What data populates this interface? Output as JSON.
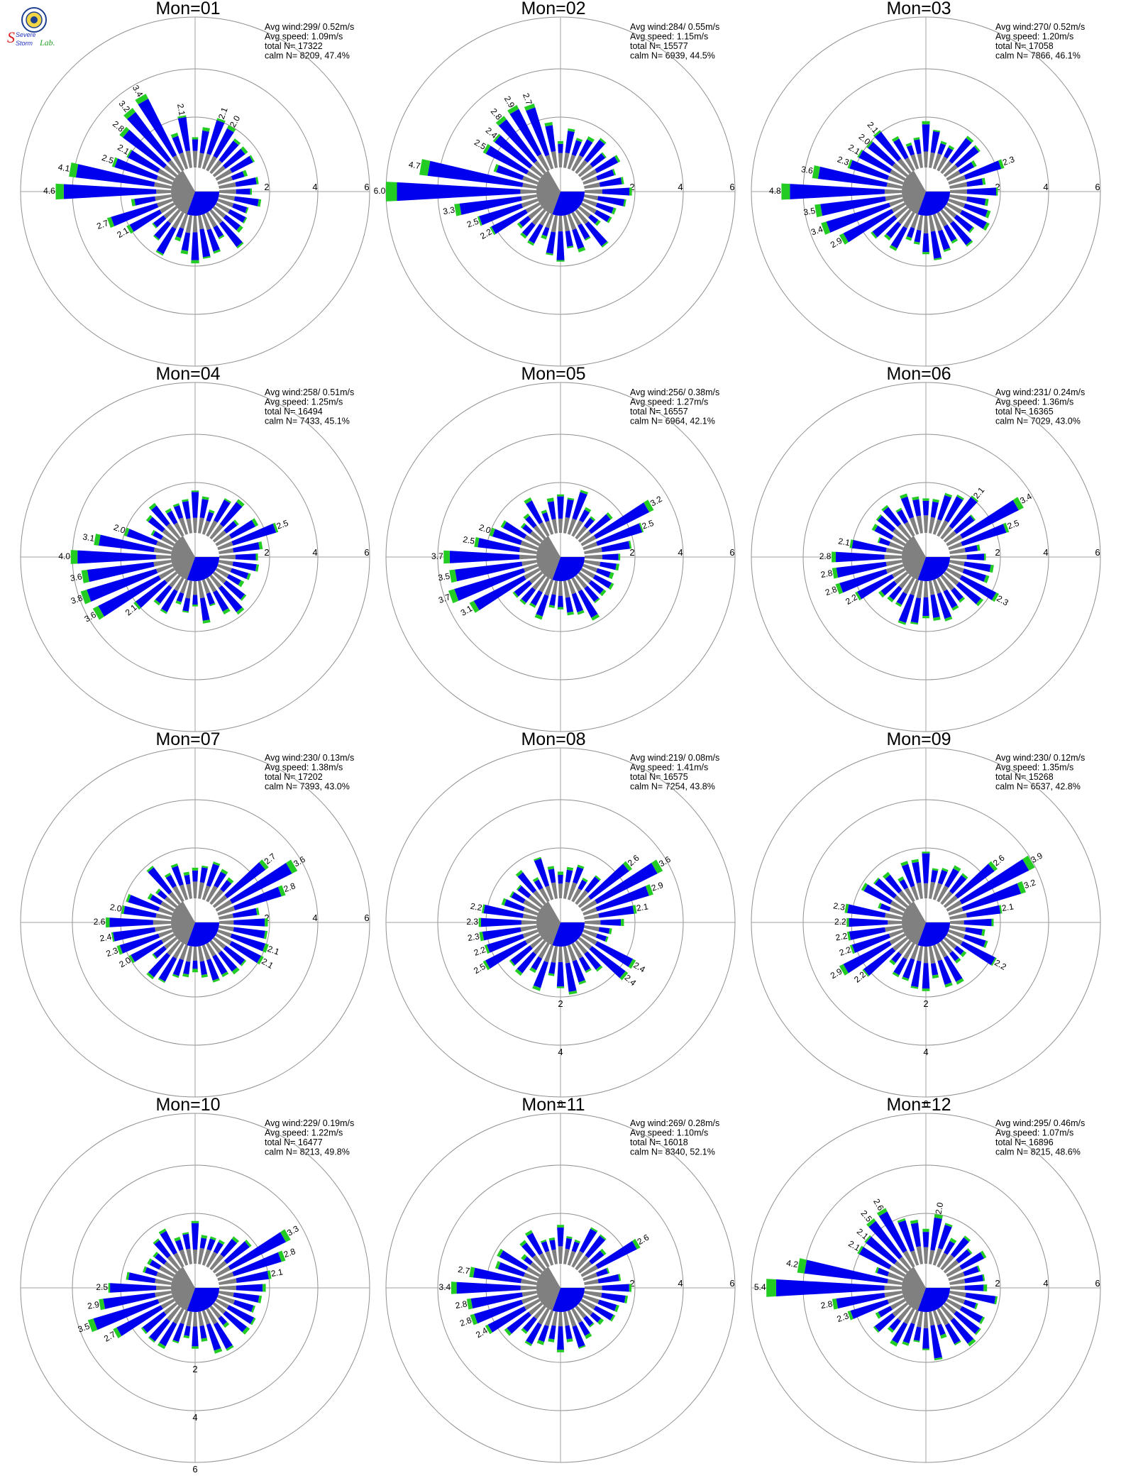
{
  "logo": {
    "line1": "Severe",
    "line2": "Storm",
    "line3": "Lab.",
    "colors": {
      "seal": "#1d3f8f",
      "s_red": "#d92020",
      "text_blue": "#2030c0",
      "lab_green": "#2aa02a"
    }
  },
  "colors": {
    "inner_segment": "#808080",
    "middle_segment": "#0000ee",
    "outer_segment": "#22cc22",
    "extreme_segment": "#ff2a2a",
    "ring": "#909090",
    "axis": "#a0a0a0"
  },
  "chart_data": [
    {
      "type": "wind-rose",
      "title": "Mon=01",
      "stats": {
        "avg_wind": "Avg wind:299/ 0.52m/s",
        "avg_speed": "Avg speed: 1.09m/s",
        "total": "total N=      17322",
        "calm": "calm N=  8209,  47.4%"
      },
      "rings": [
        "2",
        "4",
        "6"
      ],
      "ring_label_position": "east",
      "labeled_bars": [
        {
          "direction_deg": 270,
          "value": 4.6
        },
        {
          "direction_deg": 280,
          "value": 4.1
        },
        {
          "direction_deg": 290,
          "value": 2.5
        },
        {
          "direction_deg": 300,
          "value": 2.1
        },
        {
          "direction_deg": 310,
          "value": 2.8
        },
        {
          "direction_deg": 320,
          "value": 3.2
        },
        {
          "direction_deg": 330,
          "value": 3.4
        },
        {
          "direction_deg": 350,
          "value": 2.1
        },
        {
          "direction_deg": 20,
          "value": 2.1
        },
        {
          "direction_deg": 30,
          "value": 2.0
        },
        {
          "direction_deg": 250,
          "value": 2.7
        },
        {
          "direction_deg": 240,
          "value": 2.1
        }
      ]
    },
    {
      "type": "wind-rose",
      "title": "Mon=02",
      "stats": {
        "avg_wind": "Avg wind:284/ 0.55m/s",
        "avg_speed": "Avg speed: 1.15m/s",
        "total": "total N=      15577",
        "calm": "calm N=  6939,  44.5%"
      },
      "rings": [
        "2",
        "4",
        "6"
      ],
      "ring_label_position": "east",
      "labeled_bars": [
        {
          "direction_deg": 270,
          "value": 6.0
        },
        {
          "direction_deg": 280,
          "value": 4.7
        },
        {
          "direction_deg": 300,
          "value": 2.5
        },
        {
          "direction_deg": 310,
          "value": 2.4
        },
        {
          "direction_deg": 320,
          "value": 2.8
        },
        {
          "direction_deg": 330,
          "value": 2.9
        },
        {
          "direction_deg": 340,
          "value": 2.7
        },
        {
          "direction_deg": 260,
          "value": 3.3
        },
        {
          "direction_deg": 250,
          "value": 2.5
        },
        {
          "direction_deg": 240,
          "value": 2.2
        }
      ]
    },
    {
      "type": "wind-rose",
      "title": "Mon=03",
      "stats": {
        "avg_wind": "Avg wind:270/ 0.52m/s",
        "avg_speed": "Avg speed: 1.20m/s",
        "total": "total N=      17058",
        "calm": "calm N=  7866,  46.1%"
      },
      "rings": [
        "2",
        "4",
        "6"
      ],
      "ring_label_position": "east",
      "labeled_bars": [
        {
          "direction_deg": 270,
          "value": 4.8
        },
        {
          "direction_deg": 280,
          "value": 3.6
        },
        {
          "direction_deg": 290,
          "value": 2.3
        },
        {
          "direction_deg": 300,
          "value": 2.1
        },
        {
          "direction_deg": 310,
          "value": 2.0
        },
        {
          "direction_deg": 320,
          "value": 2.1
        },
        {
          "direction_deg": 260,
          "value": 3.5
        },
        {
          "direction_deg": 250,
          "value": 3.4
        },
        {
          "direction_deg": 240,
          "value": 2.9
        },
        {
          "direction_deg": 70,
          "value": 2.3
        }
      ]
    },
    {
      "type": "wind-rose",
      "title": "Mon=04",
      "stats": {
        "avg_wind": "Avg wind:258/ 0.51m/s",
        "avg_speed": "Avg speed: 1.25m/s",
        "total": "total N=      16494",
        "calm": "calm N=  7433,  45.1%"
      },
      "rings": [
        "2",
        "4",
        "6"
      ],
      "ring_label_position": "east",
      "labeled_bars": [
        {
          "direction_deg": 270,
          "value": 4.0
        },
        {
          "direction_deg": 280,
          "value": 3.1
        },
        {
          "direction_deg": 290,
          "value": 2.0
        },
        {
          "direction_deg": 260,
          "value": 3.6
        },
        {
          "direction_deg": 250,
          "value": 3.8
        },
        {
          "direction_deg": 240,
          "value": 3.6
        },
        {
          "direction_deg": 230,
          "value": 2.1
        },
        {
          "direction_deg": 70,
          "value": 2.5
        }
      ]
    },
    {
      "type": "wind-rose",
      "title": "Mon=05",
      "stats": {
        "avg_wind": "Avg wind:256/ 0.38m/s",
        "avg_speed": "Avg speed: 1.27m/s",
        "total": "total N=      16557",
        "calm": "calm N=  6964,  42.1%"
      },
      "rings": [
        "2",
        "4",
        "6"
      ],
      "ring_label_position": "east",
      "labeled_bars": [
        {
          "direction_deg": 270,
          "value": 3.7
        },
        {
          "direction_deg": 280,
          "value": 2.5
        },
        {
          "direction_deg": 290,
          "value": 2.0
        },
        {
          "direction_deg": 260,
          "value": 3.5
        },
        {
          "direction_deg": 250,
          "value": 3.7
        },
        {
          "direction_deg": 240,
          "value": 3.1
        },
        {
          "direction_deg": 60,
          "value": 3.2
        },
        {
          "direction_deg": 70,
          "value": 2.5
        }
      ]
    },
    {
      "type": "wind-rose",
      "title": "Mon=06",
      "stats": {
        "avg_wind": "Avg wind:231/ 0.24m/s",
        "avg_speed": "Avg speed: 1.36m/s",
        "total": "total N=      16365",
        "calm": "calm N=  7029,  43.0%"
      },
      "rings": [
        "2",
        "4",
        "6"
      ],
      "ring_label_position": "east",
      "labeled_bars": [
        {
          "direction_deg": 270,
          "value": 2.8
        },
        {
          "direction_deg": 280,
          "value": 2.1
        },
        {
          "direction_deg": 260,
          "value": 2.8
        },
        {
          "direction_deg": 250,
          "value": 2.8
        },
        {
          "direction_deg": 240,
          "value": 2.2
        },
        {
          "direction_deg": 40,
          "value": 2.1
        },
        {
          "direction_deg": 60,
          "value": 3.4
        },
        {
          "direction_deg": 70,
          "value": 2.5
        },
        {
          "direction_deg": 120,
          "value": 2.3
        }
      ]
    },
    {
      "type": "wind-rose",
      "title": "Mon=07",
      "stats": {
        "avg_wind": "Avg wind:230/ 0.13m/s",
        "avg_speed": "Avg speed: 1.38m/s",
        "total": "total N=      17202",
        "calm": "calm N=  7393,  43.0%"
      },
      "rings": [
        "2",
        "4",
        "6"
      ],
      "ring_label_position": "east",
      "labeled_bars": [
        {
          "direction_deg": 280,
          "value": 2.0
        },
        {
          "direction_deg": 270,
          "value": 2.6
        },
        {
          "direction_deg": 260,
          "value": 2.4
        },
        {
          "direction_deg": 250,
          "value": 2.3
        },
        {
          "direction_deg": 240,
          "value": 2.0
        },
        {
          "direction_deg": 50,
          "value": 2.7
        },
        {
          "direction_deg": 60,
          "value": 3.6
        },
        {
          "direction_deg": 70,
          "value": 2.8
        },
        {
          "direction_deg": 110,
          "value": 2.1
        },
        {
          "direction_deg": 120,
          "value": 2.1
        }
      ]
    },
    {
      "type": "wind-rose",
      "title": "Mon=08",
      "stats": {
        "avg_wind": "Avg wind:219/ 0.08m/s",
        "avg_speed": "Avg speed: 1.41m/s",
        "total": "total N=      16575",
        "calm": "calm N=  7254,  43.8%"
      },
      "rings": [
        "2",
        "4",
        "6"
      ],
      "ring_label_position": "south",
      "labeled_bars": [
        {
          "direction_deg": 280,
          "value": 2.2
        },
        {
          "direction_deg": 270,
          "value": 2.3
        },
        {
          "direction_deg": 260,
          "value": 2.3
        },
        {
          "direction_deg": 250,
          "value": 2.2
        },
        {
          "direction_deg": 240,
          "value": 2.5
        },
        {
          "direction_deg": 50,
          "value": 2.6
        },
        {
          "direction_deg": 60,
          "value": 3.6
        },
        {
          "direction_deg": 70,
          "value": 2.9
        },
        {
          "direction_deg": 80,
          "value": 2.1
        },
        {
          "direction_deg": 120,
          "value": 2.4
        },
        {
          "direction_deg": 130,
          "value": 2.4
        }
      ]
    },
    {
      "type": "wind-rose",
      "title": "Mon=09",
      "stats": {
        "avg_wind": "Avg wind:230/ 0.12m/s",
        "avg_speed": "Avg speed: 1.35m/s",
        "total": "total N=      15268",
        "calm": "calm N=  6537,  42.8%"
      },
      "rings": [
        "2",
        "4",
        "6"
      ],
      "ring_label_position": "south",
      "labeled_bars": [
        {
          "direction_deg": 280,
          "value": 2.3
        },
        {
          "direction_deg": 270,
          "value": 2.2
        },
        {
          "direction_deg": 260,
          "value": 2.2
        },
        {
          "direction_deg": 250,
          "value": 2.2
        },
        {
          "direction_deg": 240,
          "value": 2.9
        },
        {
          "direction_deg": 230,
          "value": 2.2
        },
        {
          "direction_deg": 50,
          "value": 2.6
        },
        {
          "direction_deg": 60,
          "value": 3.9
        },
        {
          "direction_deg": 70,
          "value": 3.2
        },
        {
          "direction_deg": 80,
          "value": 2.1
        },
        {
          "direction_deg": 120,
          "value": 2.2
        }
      ]
    },
    {
      "type": "wind-rose",
      "title": "Mon=10",
      "stats": {
        "avg_wind": "Avg wind:229/ 0.19m/s",
        "avg_speed": "Avg speed: 1.22m/s",
        "total": "total N=      16477",
        "calm": "calm N=  8213,  49.8%"
      },
      "rings": [
        "2",
        "4",
        "6"
      ],
      "ring_label_position": "south",
      "labeled_bars": [
        {
          "direction_deg": 270,
          "value": 2.5
        },
        {
          "direction_deg": 260,
          "value": 2.9
        },
        {
          "direction_deg": 250,
          "value": 3.5
        },
        {
          "direction_deg": 240,
          "value": 2.7
        },
        {
          "direction_deg": 60,
          "value": 3.3
        },
        {
          "direction_deg": 70,
          "value": 2.8
        },
        {
          "direction_deg": 80,
          "value": 2.1
        }
      ]
    },
    {
      "type": "wind-rose",
      "title": "Mon=11",
      "stats": {
        "avg_wind": "Avg wind:269/ 0.28m/s",
        "avg_speed": "Avg speed: 1.10m/s",
        "total": "total N=      16018",
        "calm": "calm N=  8340,  52.1%"
      },
      "rings": [
        "2",
        "4",
        "6"
      ],
      "ring_label_position": "east",
      "labeled_bars": [
        {
          "direction_deg": 280,
          "value": 2.7
        },
        {
          "direction_deg": 270,
          "value": 3.4
        },
        {
          "direction_deg": 260,
          "value": 2.8
        },
        {
          "direction_deg": 250,
          "value": 2.8
        },
        {
          "direction_deg": 240,
          "value": 2.4
        },
        {
          "direction_deg": 60,
          "value": 2.6
        }
      ]
    },
    {
      "type": "wind-rose",
      "title": "Mon=12",
      "stats": {
        "avg_wind": "Avg wind:295/ 0.46m/s",
        "avg_speed": "Avg speed: 1.07m/s",
        "total": "total N=      16896",
        "calm": "calm N=  8215,  48.6%"
      },
      "rings": [
        "2",
        "4",
        "6"
      ],
      "ring_label_position": "east",
      "labeled_bars": [
        {
          "direction_deg": 270,
          "value": 5.4
        },
        {
          "direction_deg": 280,
          "value": 4.2
        },
        {
          "direction_deg": 300,
          "value": 2.1
        },
        {
          "direction_deg": 310,
          "value": 2.1
        },
        {
          "direction_deg": 320,
          "value": 2.5
        },
        {
          "direction_deg": 330,
          "value": 2.6
        },
        {
          "direction_deg": 10,
          "value": 2.0
        },
        {
          "direction_deg": 260,
          "value": 2.8
        },
        {
          "direction_deg": 250,
          "value": 2.3
        }
      ]
    }
  ]
}
